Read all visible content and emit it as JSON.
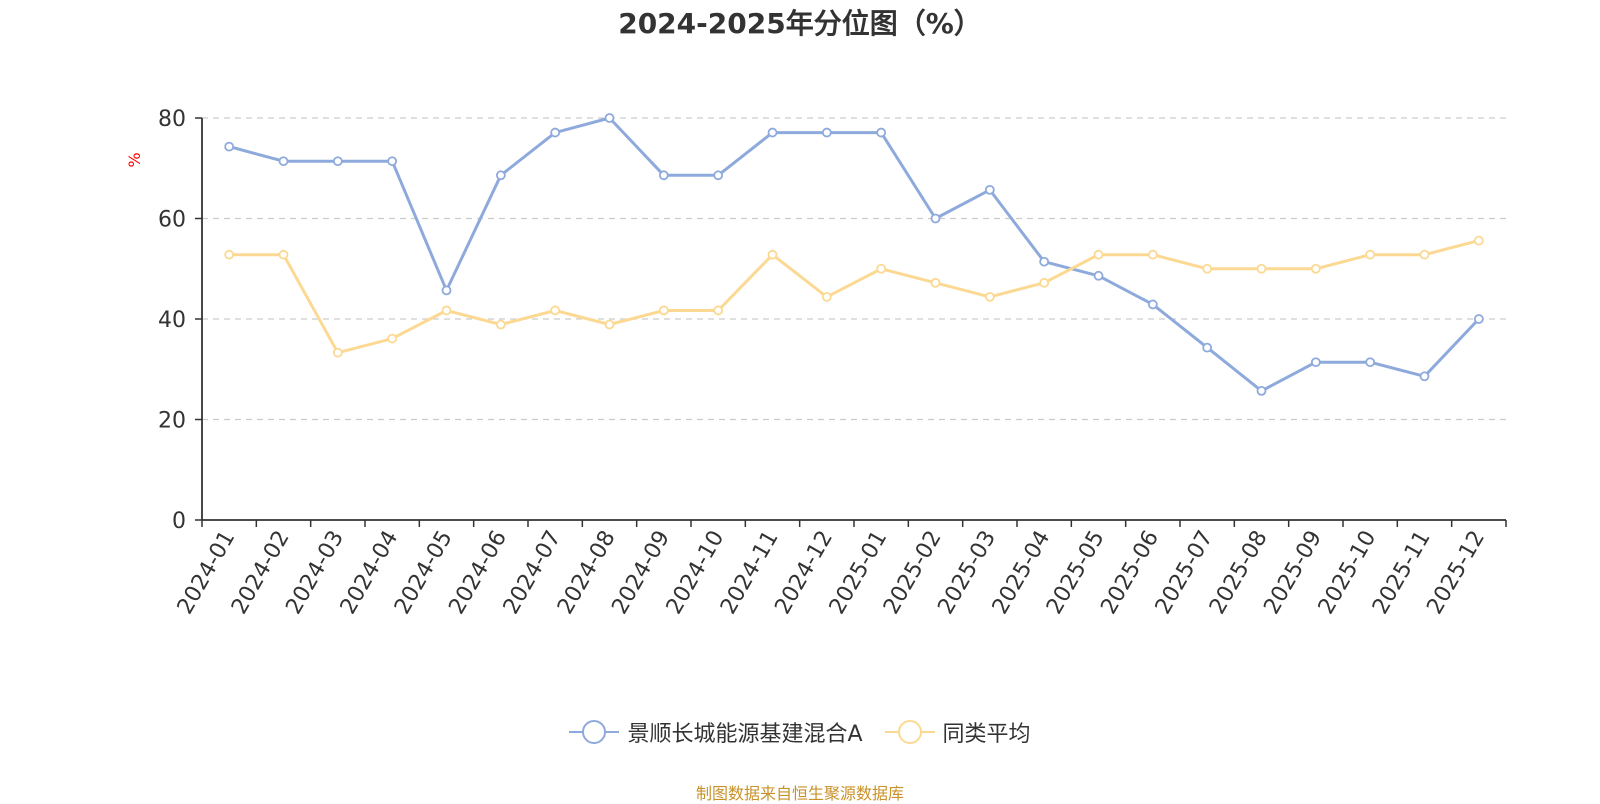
{
  "chart_data": {
    "type": "line",
    "title": "2024-2025年分位图（%）",
    "ylabel": "%",
    "xlabel": "",
    "ylim": [
      0,
      80
    ],
    "yticks": [
      0,
      20,
      40,
      60,
      80
    ],
    "grid": true,
    "legend_position": "bottom",
    "source_note": "制图数据来自恒生聚源数据库",
    "categories": [
      "2024-01",
      "2024-02",
      "2024-03",
      "2024-04",
      "2024-05",
      "2024-06",
      "2024-07",
      "2024-08",
      "2024-09",
      "2024-10",
      "2024-11",
      "2024-12",
      "2025-01",
      "2025-02",
      "2025-03",
      "2025-04",
      "2025-05",
      "2025-06",
      "2025-07",
      "2025-08",
      "2025-09",
      "2025-10",
      "2025-11",
      "2025-12"
    ],
    "series": [
      {
        "name": "景顺长城能源基建混合A",
        "color": "#8eaadc",
        "values": [
          74.3,
          71.4,
          71.4,
          71.4,
          45.7,
          68.6,
          77.1,
          80.0,
          68.6,
          68.6,
          77.1,
          77.1,
          77.1,
          60.0,
          65.7,
          51.4,
          48.6,
          42.9,
          34.3,
          25.7,
          31.4,
          31.4,
          28.6,
          40.0
        ]
      },
      {
        "name": "同类平均",
        "color": "#fcd993",
        "values": [
          52.8,
          52.8,
          33.3,
          36.1,
          41.7,
          38.9,
          41.7,
          38.9,
          41.7,
          41.7,
          52.8,
          44.4,
          50.0,
          47.2,
          44.4,
          47.2,
          52.8,
          52.8,
          50.0,
          50.0,
          50.0,
          52.8,
          52.8,
          55.6
        ]
      }
    ]
  }
}
